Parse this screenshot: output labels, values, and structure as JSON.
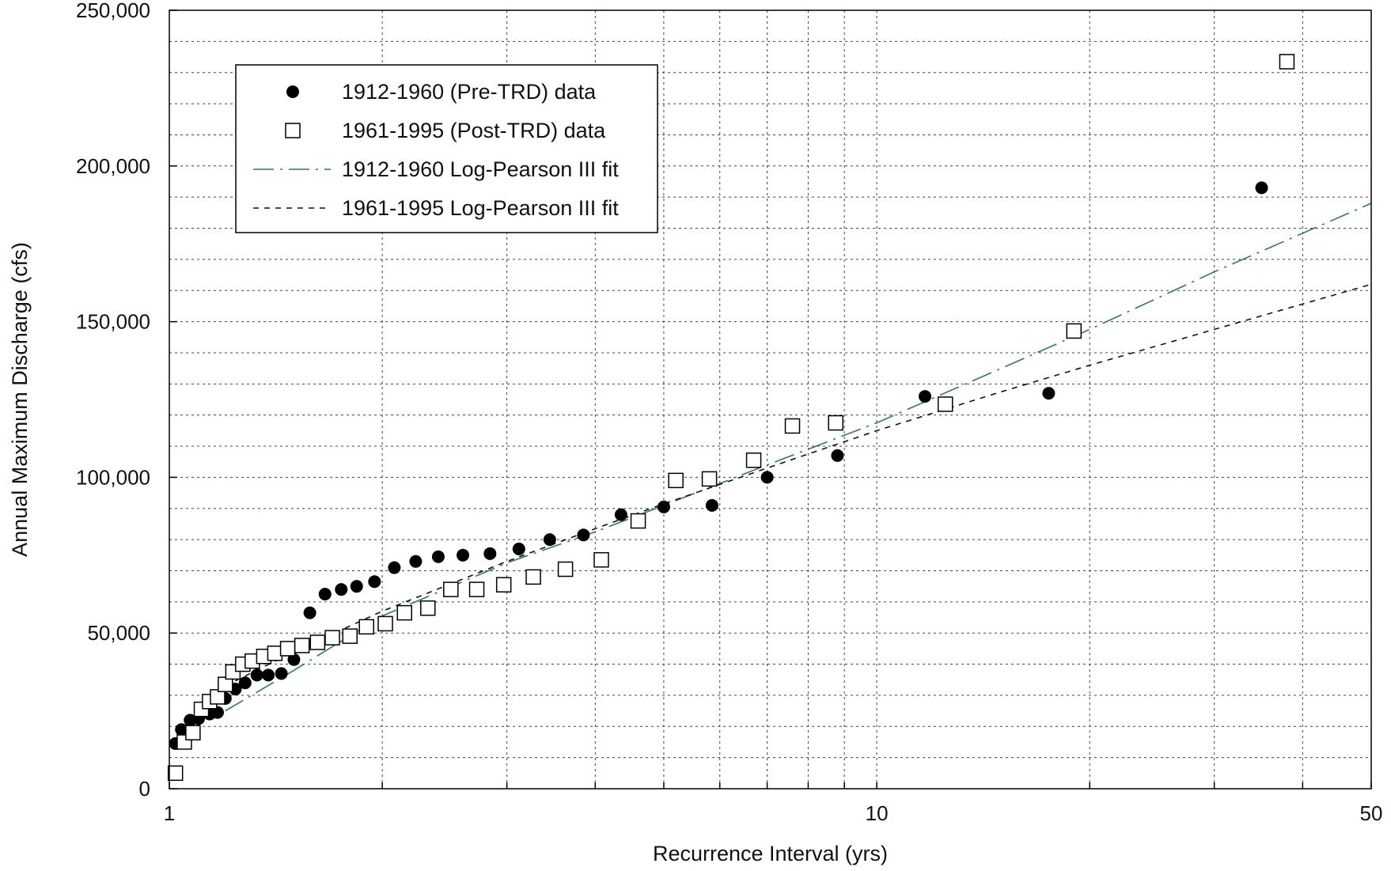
{
  "chart_data": {
    "type": "scatter",
    "title": "",
    "xlabel": "Recurrence Interval (yrs)",
    "ylabel": "Annual Maximum Discharge (cfs)",
    "x_scale": "log",
    "xlim": [
      1,
      50
    ],
    "ylim": [
      0,
      250000
    ],
    "x_tick_labels": [
      {
        "value": 1,
        "label": "1"
      },
      {
        "value": 10,
        "label": "10"
      },
      {
        "value": 50,
        "label": "50"
      }
    ],
    "x_minor_ticks": [
      2,
      3,
      4,
      5,
      6,
      7,
      8,
      9,
      20,
      30,
      40
    ],
    "y_tick_labels": [
      {
        "value": 0,
        "label": "0"
      },
      {
        "value": 50000,
        "label": "50,000"
      },
      {
        "value": 100000,
        "label": "100,000"
      },
      {
        "value": 150000,
        "label": "150,000"
      },
      {
        "value": 200000,
        "label": "200,000"
      },
      {
        "value": 250000,
        "label": "250,000"
      }
    ],
    "y_minor_step": 10000,
    "grid": true,
    "legend_position": "top-left",
    "series": [
      {
        "name": "1912-1960 (Pre-TRD) data",
        "kind": "points",
        "marker": "filled-circle",
        "color": "#000000",
        "points": [
          [
            1.02,
            14500
          ],
          [
            1.04,
            19000
          ],
          [
            1.07,
            22000
          ],
          [
            1.1,
            22500
          ],
          [
            1.14,
            24000
          ],
          [
            1.17,
            24500
          ],
          [
            1.2,
            29000
          ],
          [
            1.24,
            32000
          ],
          [
            1.28,
            34000
          ],
          [
            1.33,
            36500
          ],
          [
            1.38,
            36500
          ],
          [
            1.44,
            37000
          ],
          [
            1.5,
            41500
          ],
          [
            1.58,
            56500
          ],
          [
            1.66,
            62500
          ],
          [
            1.75,
            64000
          ],
          [
            1.84,
            65000
          ],
          [
            1.95,
            66500
          ],
          [
            2.08,
            71000
          ],
          [
            2.23,
            73000
          ],
          [
            2.4,
            74500
          ],
          [
            2.6,
            75000
          ],
          [
            2.84,
            75500
          ],
          [
            3.12,
            77000
          ],
          [
            3.45,
            80000
          ],
          [
            3.85,
            81500
          ],
          [
            4.35,
            88000
          ],
          [
            5.0,
            90500
          ],
          [
            5.85,
            91000
          ],
          [
            7.0,
            100000
          ],
          [
            8.8,
            107000
          ],
          [
            11.7,
            126000
          ],
          [
            17.5,
            127000
          ],
          [
            35.0,
            193000
          ]
        ]
      },
      {
        "name": "1961-1995 (Post-TRD) data",
        "kind": "points",
        "marker": "open-square",
        "color": "#000000",
        "points": [
          [
            1.02,
            5000
          ],
          [
            1.05,
            15000
          ],
          [
            1.08,
            18000
          ],
          [
            1.11,
            25500
          ],
          [
            1.14,
            28000
          ],
          [
            1.17,
            29500
          ],
          [
            1.2,
            33500
          ],
          [
            1.23,
            37500
          ],
          [
            1.27,
            40000
          ],
          [
            1.31,
            41000
          ],
          [
            1.36,
            42500
          ],
          [
            1.41,
            43500
          ],
          [
            1.47,
            45000
          ],
          [
            1.54,
            46000
          ],
          [
            1.62,
            47000
          ],
          [
            1.7,
            48500
          ],
          [
            1.8,
            49000
          ],
          [
            1.9,
            52000
          ],
          [
            2.02,
            53000
          ],
          [
            2.15,
            56500
          ],
          [
            2.32,
            58000
          ],
          [
            2.5,
            64000
          ],
          [
            2.72,
            64000
          ],
          [
            2.97,
            65500
          ],
          [
            3.27,
            68000
          ],
          [
            3.63,
            70500
          ],
          [
            4.08,
            73500
          ],
          [
            4.6,
            86000
          ],
          [
            5.2,
            99000
          ],
          [
            5.8,
            99500
          ],
          [
            6.7,
            105500
          ],
          [
            7.6,
            116500
          ],
          [
            8.75,
            117500
          ],
          [
            12.5,
            123500
          ],
          [
            19.0,
            147000
          ],
          [
            38.0,
            233500
          ]
        ]
      },
      {
        "name": "1912-1960 Log-Pearson III fit",
        "kind": "line",
        "style": "dash-dot",
        "color": "#2e7d4f",
        "points": [
          [
            1.2,
            25000
          ],
          [
            1.5,
            38000
          ],
          [
            2,
            55500
          ],
          [
            3,
            72500
          ],
          [
            4,
            82500
          ],
          [
            5,
            91000
          ],
          [
            7,
            104000
          ],
          [
            10,
            117500
          ],
          [
            15,
            135000
          ],
          [
            20,
            147500
          ],
          [
            30,
            166000
          ],
          [
            50,
            188000
          ]
        ]
      },
      {
        "name": "1961-1995 Log-Pearson III fit",
        "kind": "line",
        "style": "dashed",
        "color": "#111111",
        "points": [
          [
            1.2,
            33000
          ],
          [
            1.5,
            44000
          ],
          [
            2,
            57000
          ],
          [
            3,
            73000
          ],
          [
            4,
            83500
          ],
          [
            5,
            91500
          ],
          [
            7,
            103000
          ],
          [
            10,
            115000
          ],
          [
            15,
            127500
          ],
          [
            20,
            136000
          ],
          [
            30,
            147500
          ],
          [
            50,
            162000
          ]
        ]
      }
    ]
  }
}
